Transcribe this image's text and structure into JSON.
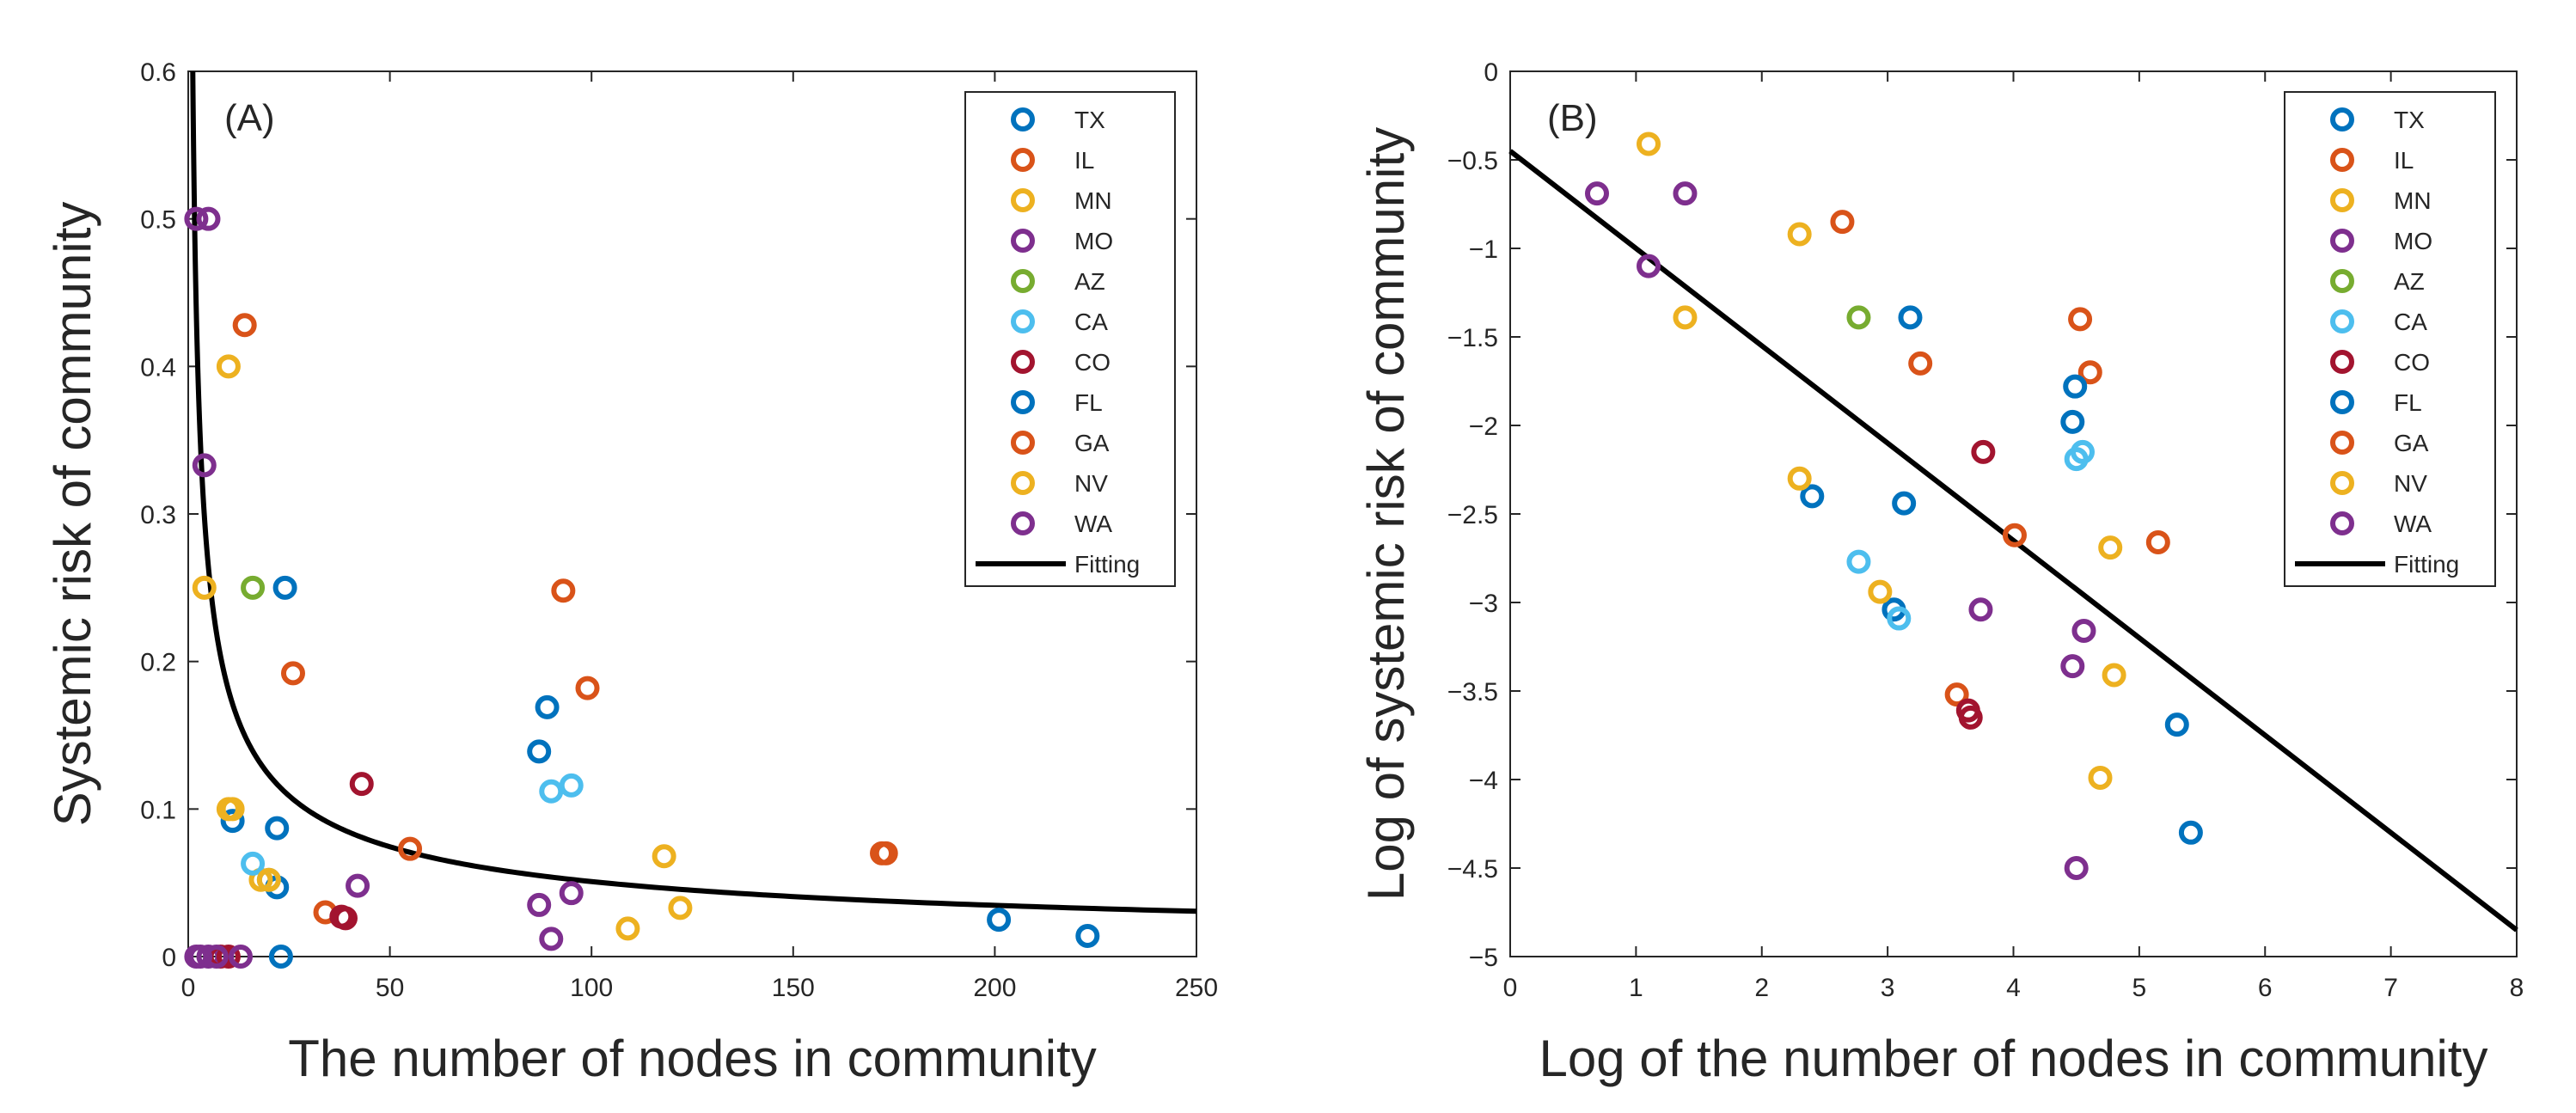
{
  "chart_data": [
    {
      "type": "scatter",
      "panel_label": "(A)",
      "xlabel": "The number of nodes in community",
      "ylabel": "Systemic risk of community",
      "xlim": [
        0,
        250
      ],
      "ylim": [
        0,
        0.6
      ],
      "xticks": [
        0,
        50,
        100,
        150,
        200,
        250
      ],
      "yticks": [
        0,
        0.1,
        0.2,
        0.3,
        0.4,
        0.5,
        0.6
      ],
      "xtick_labels": [
        "0",
        "50",
        "100",
        "150",
        "200",
        "250"
      ],
      "ytick_labels": [
        "0",
        "0.1",
        "0.2",
        "0.3",
        "0.4",
        "0.5",
        "0.6"
      ],
      "legend_position": "top-right",
      "fit": {
        "name": "Fitting",
        "model": "power",
        "a": 0.64,
        "b": -0.55,
        "x_from": 1,
        "x_to": 250
      },
      "series": [
        {
          "name": "TX",
          "color": "#0072BD",
          "points": [
            [
              11,
              0.092
            ],
            [
              22,
              0.087
            ],
            [
              24,
              0.25
            ],
            [
              22,
              0.047
            ],
            [
              23,
              0.0
            ]
          ]
        },
        {
          "name": "IL",
          "color": "#D95319",
          "points": [
            [
              14,
              0.428
            ],
            [
              26,
              0.192
            ],
            [
              34,
              0.03
            ],
            [
              55,
              0.073
            ],
            [
              93,
              0.248
            ],
            [
              99,
              0.182
            ],
            [
              173,
              0.07
            ]
          ]
        },
        {
          "name": "MN",
          "color": "#EDB120",
          "points": [
            [
              10,
              0.4
            ],
            [
              4,
              0.25
            ],
            [
              10,
              0.1
            ],
            [
              18,
              0.052
            ],
            [
              118,
              0.068
            ],
            [
              109,
              0.019
            ],
            [
              122,
              0.033
            ]
          ]
        },
        {
          "name": "MO",
          "color": "#7E2F8E",
          "points": [
            [
              2,
              0.5
            ],
            [
              5,
              0.5
            ],
            [
              4,
              0.333
            ],
            [
              42,
              0.048
            ],
            [
              87,
              0.035
            ],
            [
              95,
              0.043
            ],
            [
              90,
              0.012
            ],
            [
              2,
              0.0
            ],
            [
              5,
              0.0
            ]
          ]
        },
        {
          "name": "AZ",
          "color": "#77AC30",
          "points": [
            [
              16,
              0.25
            ]
          ]
        },
        {
          "name": "CA",
          "color": "#4DBEEE",
          "points": [
            [
              16,
              0.063
            ],
            [
              20,
              0.052
            ],
            [
              90,
              0.112
            ],
            [
              95,
              0.116
            ]
          ]
        },
        {
          "name": "CO",
          "color": "#A2142F",
          "points": [
            [
              43,
              0.117
            ],
            [
              38,
              0.027
            ],
            [
              39,
              0.026
            ],
            [
              10,
              0.0
            ],
            [
              8,
              0.0
            ]
          ]
        },
        {
          "name": "FL",
          "color": "#0072BD",
          "points": [
            [
              87,
              0.139
            ],
            [
              89,
              0.169
            ],
            [
              201,
              0.025
            ],
            [
              223,
              0.014
            ]
          ]
        },
        {
          "name": "GA",
          "color": "#D95319",
          "points": [
            [
              172,
              0.07
            ]
          ]
        },
        {
          "name": "NV",
          "color": "#EDB120",
          "points": [
            [
              11,
              0.1
            ],
            [
              20,
              0.052
            ]
          ]
        },
        {
          "name": "WA",
          "color": "#7E2F8E",
          "points": [
            [
              3,
              0.0
            ],
            [
              13,
              0.0
            ],
            [
              7,
              0.0
            ]
          ]
        }
      ]
    },
    {
      "type": "scatter",
      "panel_label": "(B)",
      "xlabel": "Log of the number of nodes in community",
      "ylabel": "Log of systemic risk of community",
      "xlim": [
        0,
        8
      ],
      "ylim": [
        -5,
        0
      ],
      "xticks": [
        0,
        1,
        2,
        3,
        4,
        5,
        6,
        7,
        8
      ],
      "yticks": [
        -5,
        -4.5,
        -4,
        -3.5,
        -3,
        -2.5,
        -2,
        -1.5,
        -1,
        -0.5,
        0
      ],
      "xtick_labels": [
        "0",
        "1",
        "2",
        "3",
        "4",
        "5",
        "6",
        "7",
        "8"
      ],
      "ytick_labels": [
        "−5",
        "−4.5",
        "−4",
        "−3.5",
        "−3",
        "−2.5",
        "−2",
        "−1.5",
        "−1",
        "−0.5",
        "0"
      ],
      "legend_position": "top-right",
      "fit": {
        "name": "Fitting",
        "model": "linear",
        "intercept": -0.45,
        "slope": -0.55,
        "x_from": 0,
        "x_to": 8
      },
      "series": [
        {
          "name": "TX",
          "color": "#0072BD",
          "points": [
            [
              2.4,
              -2.4
            ],
            [
              3.13,
              -2.44
            ],
            [
              3.05,
              -3.04
            ],
            [
              3.18,
              -1.39
            ]
          ]
        },
        {
          "name": "IL",
          "color": "#D95319",
          "points": [
            [
              2.64,
              -0.85
            ],
            [
              3.26,
              -1.65
            ],
            [
              3.55,
              -3.52
            ],
            [
              4.01,
              -2.62
            ],
            [
              4.53,
              -1.4
            ],
            [
              4.61,
              -1.7
            ],
            [
              5.15,
              -2.66
            ]
          ]
        },
        {
          "name": "MN",
          "color": "#EDB120",
          "points": [
            [
              1.1,
              -0.41
            ],
            [
              1.39,
              -1.39
            ],
            [
              2.3,
              -0.92
            ],
            [
              2.3,
              -2.3
            ],
            [
              2.94,
              -2.94
            ],
            [
              4.77,
              -2.69
            ],
            [
              4.69,
              -3.99
            ],
            [
              4.8,
              -3.41
            ]
          ]
        },
        {
          "name": "MO",
          "color": "#7E2F8E",
          "points": [
            [
              0.69,
              -0.69
            ],
            [
              1.39,
              -0.69
            ],
            [
              1.1,
              -1.1
            ],
            [
              3.74,
              -3.04
            ],
            [
              4.47,
              -3.36
            ],
            [
              4.56,
              -3.16
            ],
            [
              4.5,
              -4.5
            ]
          ]
        },
        {
          "name": "AZ",
          "color": "#77AC30",
          "points": [
            [
              2.77,
              -1.39
            ]
          ]
        },
        {
          "name": "CA",
          "color": "#4DBEEE",
          "points": [
            [
              2.77,
              -2.77
            ],
            [
              3.09,
              -3.09
            ],
            [
              4.5,
              -2.19
            ],
            [
              4.55,
              -2.15
            ]
          ]
        },
        {
          "name": "CO",
          "color": "#A2142F",
          "points": [
            [
              3.76,
              -2.15
            ],
            [
              3.64,
              -3.61
            ],
            [
              3.66,
              -3.65
            ]
          ]
        },
        {
          "name": "FL",
          "color": "#0072BD",
          "points": [
            [
              4.47,
              -1.98
            ],
            [
              4.49,
              -1.78
            ],
            [
              5.3,
              -3.69
            ],
            [
              5.41,
              -4.3
            ]
          ]
        },
        {
          "name": "GA",
          "color": "#D95319",
          "points": []
        },
        {
          "name": "NV",
          "color": "#EDB120",
          "points": []
        },
        {
          "name": "WA",
          "color": "#7E2F8E",
          "points": []
        }
      ]
    }
  ]
}
